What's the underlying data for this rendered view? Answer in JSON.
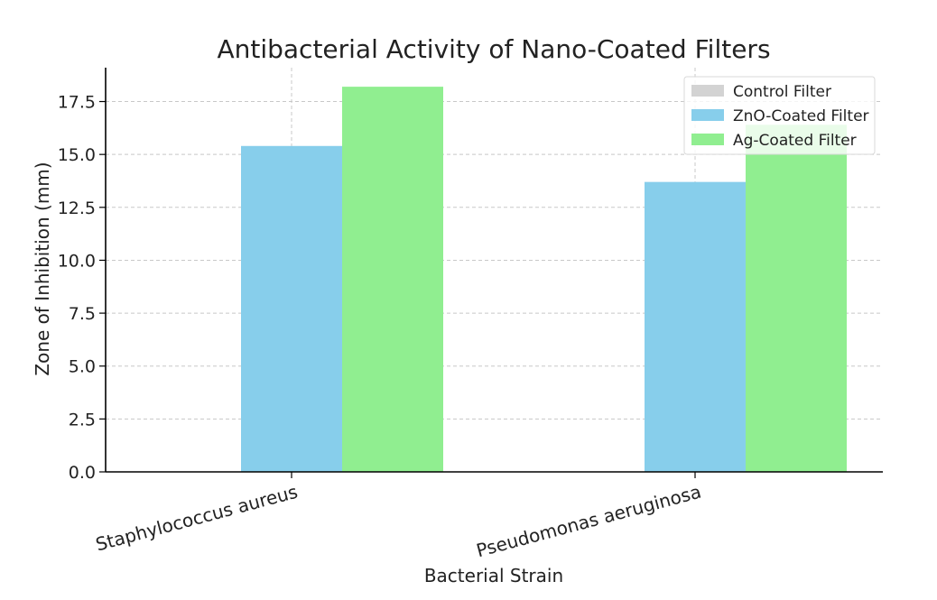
{
  "chart_data": {
    "type": "bar",
    "title": "Antibacterial Activity of Nano-Coated Filters",
    "xlabel": "Bacterial Strain",
    "ylabel": "Zone of Inhibition (mm)",
    "categories": [
      "Staphylococcus aureus",
      "Pseudomonas aeruginosa"
    ],
    "series": [
      {
        "name": "Control Filter",
        "values": [
          0,
          0
        ],
        "color": "#d3d3d3"
      },
      {
        "name": "ZnO-Coated Filter",
        "values": [
          15.4,
          13.7
        ],
        "color": "#87ceeb"
      },
      {
        "name": "Ag-Coated Filter",
        "values": [
          18.2,
          16.4
        ],
        "color": "#90ee90"
      }
    ],
    "ylim": [
      0,
      19.1
    ],
    "yticks": [
      0.0,
      2.5,
      5.0,
      7.5,
      10.0,
      12.5,
      15.0,
      17.5
    ],
    "ytick_labels": [
      "0.0",
      "2.5",
      "5.0",
      "7.5",
      "10.0",
      "12.5",
      "15.0",
      "17.5"
    ],
    "grid": true,
    "legend_position": "top-right"
  }
}
